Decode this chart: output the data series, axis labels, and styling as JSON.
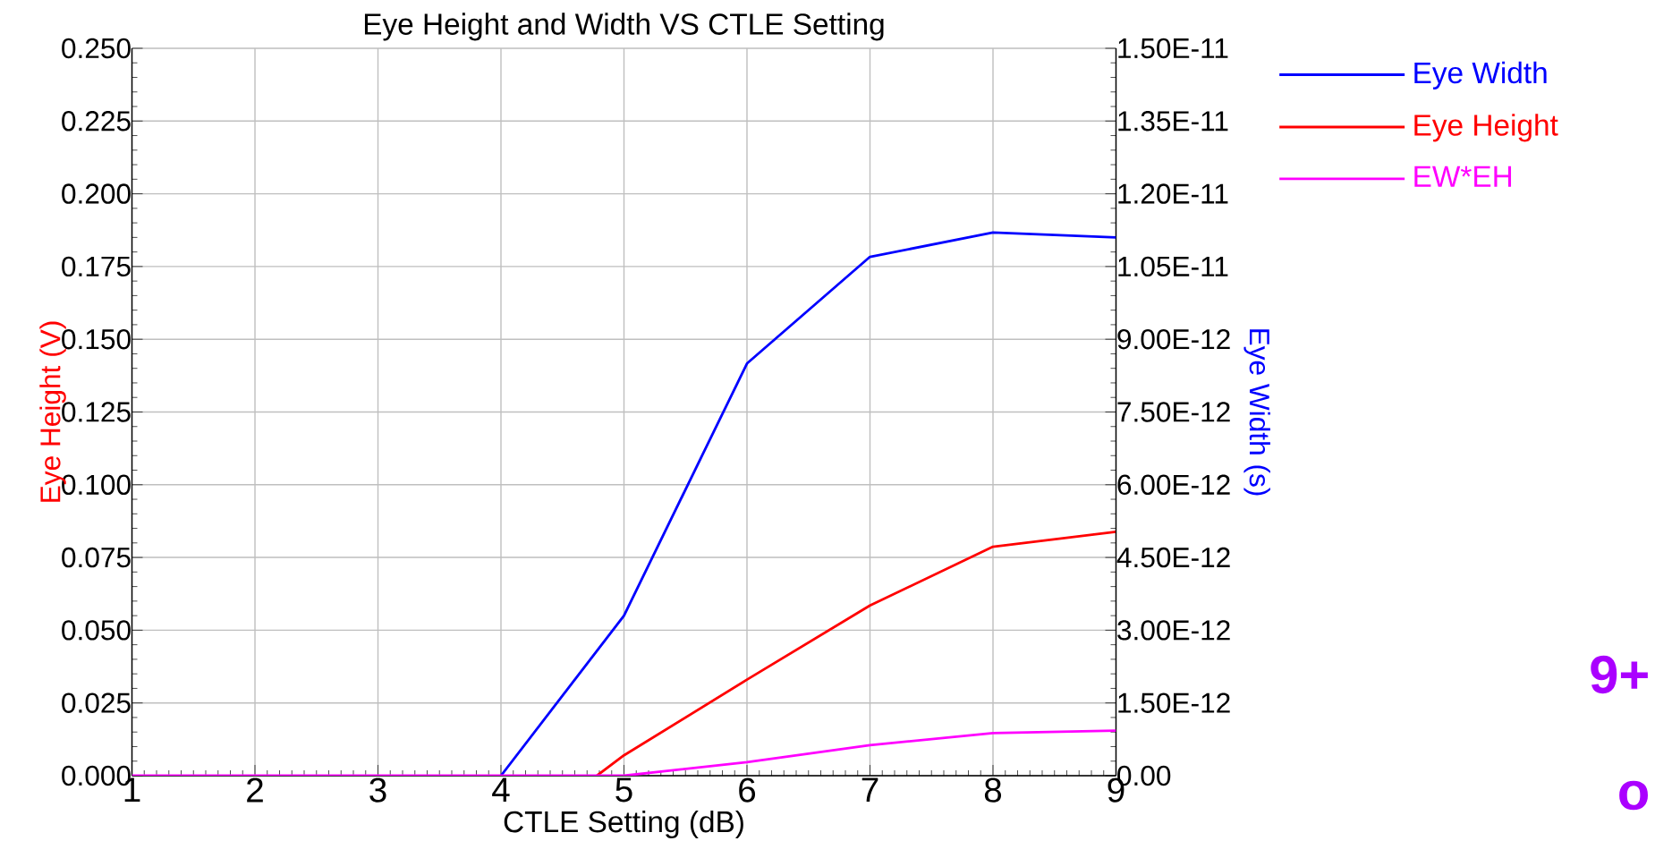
{
  "chart_data": {
    "type": "line",
    "title": "Eye Height and Width VS CTLE Setting",
    "xlabel": "CTLE Setting (dB)",
    "ylabel": "Eye Height (V)",
    "y2label": "Eye Width (s)",
    "x": [
      1,
      2,
      3,
      4,
      5,
      6,
      7,
      8,
      9
    ],
    "series": [
      {
        "name": "Eye Width",
        "color": "#0000ff",
        "axis": "y2",
        "values": [
          null,
          null,
          null,
          0,
          3.3e-12,
          8.5e-12,
          1.07e-11,
          1.12e-11,
          1.11e-11
        ]
      },
      {
        "name": "Eye Height",
        "color": "#ff0000",
        "axis": "y",
        "x": [
          4.78,
          5,
          6,
          7,
          8,
          9
        ],
        "values": [
          0,
          0.007,
          0.033,
          0.0585,
          0.0787,
          0.0838
        ]
      },
      {
        "name": "EW*EH",
        "color": "#ff00ff",
        "axis": "y2",
        "values": [
          0,
          0,
          0,
          0,
          0,
          2.8e-13,
          6.3e-13,
          8.8e-13,
          9.3e-13
        ]
      }
    ],
    "xlim": [
      1,
      9
    ],
    "xticks": [
      1,
      2,
      3,
      4,
      5,
      6,
      7,
      8,
      9
    ],
    "ylim": [
      0,
      0.25
    ],
    "yticks": [
      {
        "value": 0,
        "label": "0.000"
      },
      {
        "value": 0.025,
        "label": "0.025"
      },
      {
        "value": 0.05,
        "label": "0.050"
      },
      {
        "value": 0.075,
        "label": "0.075"
      },
      {
        "value": 0.1,
        "label": "0.100"
      },
      {
        "value": 0.125,
        "label": "0.125"
      },
      {
        "value": 0.15,
        "label": "0.150"
      },
      {
        "value": 0.175,
        "label": "0.175"
      },
      {
        "value": 0.2,
        "label": "0.200"
      },
      {
        "value": 0.225,
        "label": "0.225"
      },
      {
        "value": 0.25,
        "label": "0.250"
      }
    ],
    "y2lim": [
      0,
      1.5e-11
    ],
    "y2ticks": [
      {
        "value": 0,
        "label": "0.00"
      },
      {
        "value": 1.5e-12,
        "label": "1.50E-12"
      },
      {
        "value": 3e-12,
        "label": "3.00E-12"
      },
      {
        "value": 4.5e-12,
        "label": "4.50E-12"
      },
      {
        "value": 6e-12,
        "label": "6.00E-12"
      },
      {
        "value": 7.5e-12,
        "label": "7.50E-12"
      },
      {
        "value": 9e-12,
        "label": "9.00E-12"
      },
      {
        "value": 1.05e-11,
        "label": "1.05E-11"
      },
      {
        "value": 1.2e-11,
        "label": "1.20E-11"
      },
      {
        "value": 1.35e-11,
        "label": "1.35E-11"
      },
      {
        "value": 1.5e-11,
        "label": "1.50E-11"
      }
    ],
    "grid": true,
    "legend": "right",
    "marker": "none",
    "line_style": "solid",
    "annotations": [
      "9+",
      "o"
    ]
  }
}
